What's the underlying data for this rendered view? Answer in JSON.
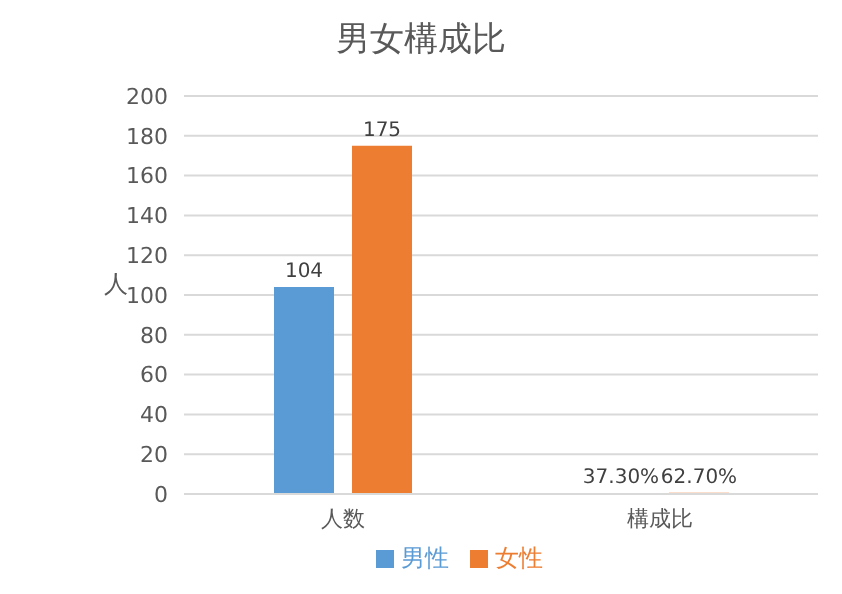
{
  "chart_data": {
    "type": "bar",
    "title": "男女構成比",
    "ylabel": "人",
    "categories": [
      "人数",
      "構成比"
    ],
    "series": [
      {
        "name": "男性",
        "color": "#5b9bd5",
        "values": [
          104,
          0.373
        ],
        "value_labels": [
          "104",
          "37.30%"
        ]
      },
      {
        "name": "女性",
        "color": "#ed7d31",
        "values": [
          175,
          0.627
        ],
        "value_labels": [
          "175",
          "62.70%"
        ]
      }
    ],
    "ylim": [
      0,
      200
    ],
    "yticks": [
      0,
      20,
      40,
      60,
      80,
      100,
      120,
      140,
      160,
      180,
      200
    ],
    "grid": "y",
    "legend": "bottom"
  }
}
